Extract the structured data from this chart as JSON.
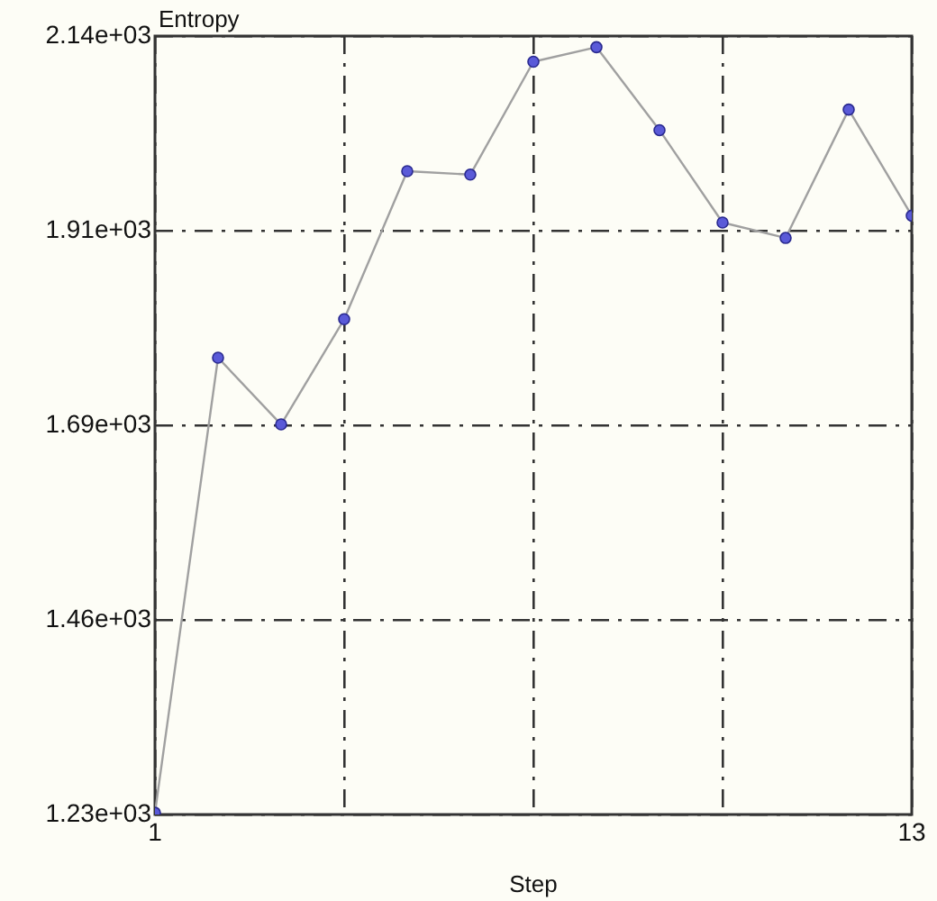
{
  "chart_data": {
    "type": "line",
    "xlabel": "Step",
    "ylabel": "Entropy",
    "x": [
      1,
      2,
      3,
      4,
      5,
      6,
      7,
      8,
      9,
      10,
      11,
      12,
      13
    ],
    "series": [
      {
        "color": "#5a5ad8",
        "values": [
          1232,
          1764,
          1686,
          1809,
          1982,
          1978,
          2110,
          2127,
          2030,
          1922,
          1904,
          2054,
          1930
        ]
      }
    ],
    "xlim": [
      1,
      13
    ],
    "xticks": [
      1,
      {
        "value": 4,
        "label": null
      },
      {
        "value": 7,
        "label": null
      },
      {
        "value": 10,
        "label": null
      },
      13
    ],
    "ylim": [
      1230,
      2140
    ],
    "yticks": [
      {
        "value": 1230,
        "label": "1.23e+03"
      },
      {
        "value": 1457.5,
        "label": "1.46e+03"
      },
      {
        "value": 1685,
        "label": "1.69e+03"
      },
      {
        "value": 1912.5,
        "label": "1.91e+03"
      },
      {
        "value": 2140,
        "label": "2.14e+03"
      }
    ],
    "grid": true,
    "legend": false,
    "marker": "circle",
    "line_style": "solid"
  }
}
